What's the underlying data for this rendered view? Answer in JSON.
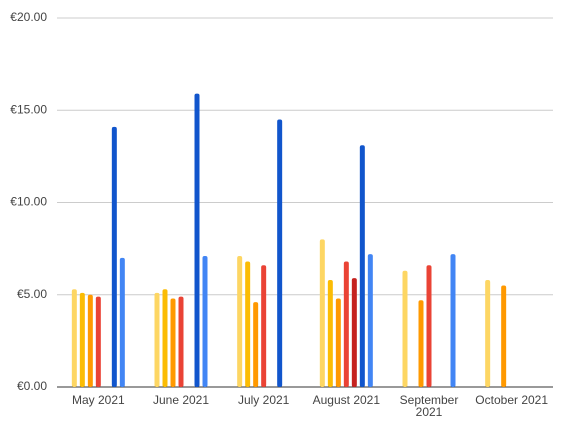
{
  "chart_data": {
    "type": "bar",
    "categories": [
      "May 2021",
      "June 2021",
      "July 2021",
      "August 2021",
      "September 2021",
      "October 2021"
    ],
    "series": [
      {
        "color": "#fdd663",
        "values": [
          5.3,
          5.1,
          7.1,
          8.0,
          6.3,
          5.8
        ]
      },
      {
        "color": "#fbbc04",
        "values": [
          5.1,
          5.3,
          6.8,
          5.8,
          null,
          null
        ]
      },
      {
        "color": "#ff9900",
        "values": [
          5.0,
          4.8,
          4.6,
          4.8,
          4.7,
          5.5
        ]
      },
      {
        "color": "#ea4335",
        "values": [
          4.9,
          4.9,
          6.6,
          6.8,
          6.6,
          null
        ]
      },
      {
        "color": "#c5221f",
        "values": [
          null,
          null,
          null,
          5.9,
          null,
          null
        ]
      },
      {
        "color": "#1155cc",
        "values": [
          14.1,
          15.9,
          14.5,
          13.1,
          null,
          null
        ]
      },
      {
        "color": "#4285f4",
        "values": [
          7.0,
          7.1,
          null,
          7.2,
          7.2,
          null
        ]
      }
    ],
    "ylim": [
      0,
      20
    ],
    "yticks": [
      {
        "value": 0,
        "label": "€0.00"
      },
      {
        "value": 5,
        "label": "€5.00"
      },
      {
        "value": 10,
        "label": "€10.00"
      },
      {
        "value": 15,
        "label": "€15.00"
      },
      {
        "value": 20,
        "label": "€20.00"
      }
    ],
    "grid": true
  }
}
